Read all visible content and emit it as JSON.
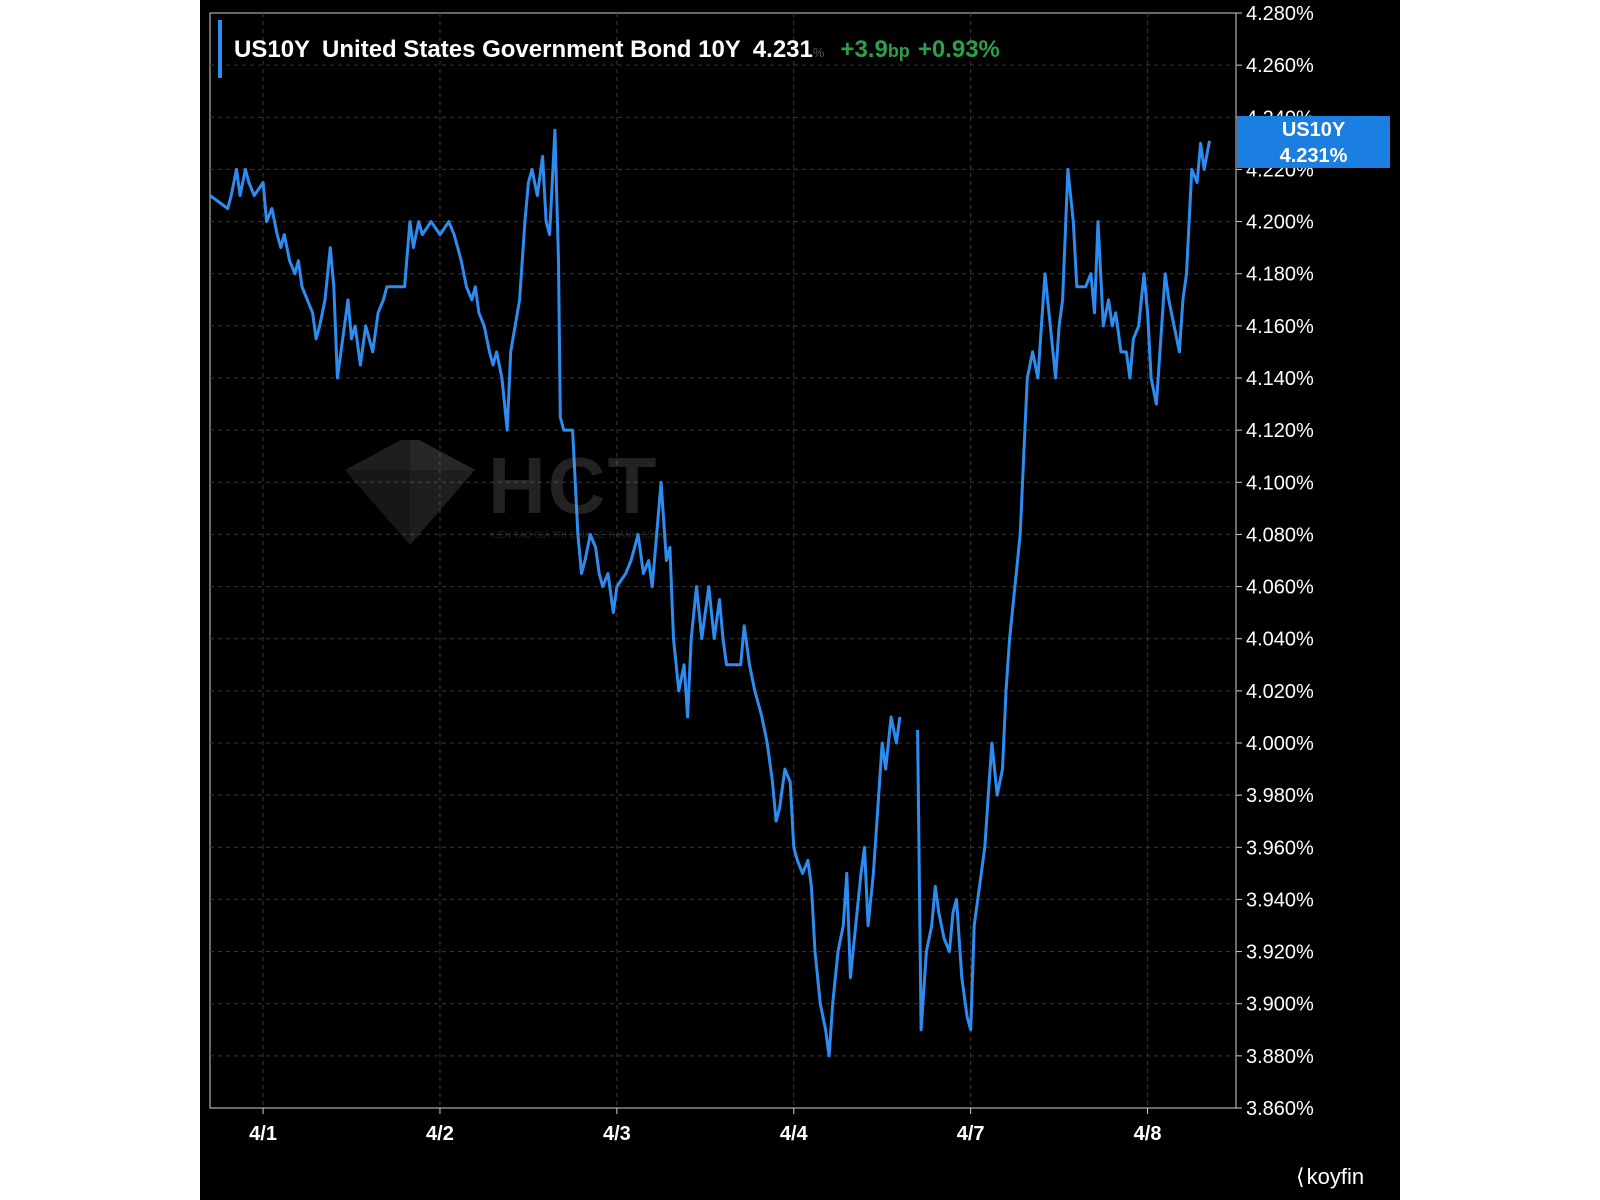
{
  "header": {
    "symbol": "US10Y",
    "name": "United States Government Bond 10Y",
    "value": "4.231",
    "value_unit": "%",
    "change": "+3.9",
    "change_unit": "bp",
    "change_pct": "+0.93%"
  },
  "last_badge": {
    "symbol": "US10Y",
    "value": "4.231%"
  },
  "watermark": {
    "text": "HCT",
    "tagline": "KIẾN TẠO GIÁ TRỊ CHIA SẺ THÀNH CÔNG"
  },
  "brand": {
    "name": "koyfin"
  },
  "colors": {
    "line": "#2d8cf0",
    "positive": "#2e9e4a",
    "badge": "#1a7fe0",
    "background": "#000000"
  },
  "chart_data": {
    "type": "line",
    "title": "",
    "xlabel": "",
    "ylabel": "",
    "x_ticks": [
      "4/1",
      "4/2",
      "4/3",
      "4/4",
      "4/7",
      "4/8"
    ],
    "y_ticks": [
      "3.860%",
      "3.880%",
      "3.900%",
      "3.920%",
      "3.940%",
      "3.960%",
      "3.980%",
      "4.000%",
      "4.020%",
      "4.040%",
      "4.060%",
      "4.080%",
      "4.100%",
      "4.120%",
      "4.140%",
      "4.160%",
      "4.180%",
      "4.200%",
      "4.220%",
      "4.240%",
      "4.260%",
      "4.280%"
    ],
    "ylim": [
      3.86,
      4.28
    ],
    "xlim": [
      -0.3,
      5.5
    ],
    "grid": true,
    "series": [
      {
        "name": "US10Y",
        "segments": [
          [
            [
              -0.3,
              4.21
            ],
            [
              -0.2,
              4.205
            ],
            [
              -0.18,
              4.21
            ],
            [
              -0.15,
              4.22
            ],
            [
              -0.13,
              4.21
            ],
            [
              -0.1,
              4.22
            ],
            [
              -0.08,
              4.215
            ],
            [
              -0.05,
              4.21
            ],
            [
              0.0,
              4.215
            ],
            [
              0.02,
              4.2
            ],
            [
              0.05,
              4.205
            ],
            [
              0.08,
              4.195
            ],
            [
              0.1,
              4.19
            ],
            [
              0.12,
              4.195
            ],
            [
              0.15,
              4.185
            ],
            [
              0.18,
              4.18
            ],
            [
              0.2,
              4.185
            ],
            [
              0.22,
              4.175
            ],
            [
              0.25,
              4.17
            ],
            [
              0.28,
              4.165
            ],
            [
              0.3,
              4.155
            ],
            [
              0.32,
              4.16
            ],
            [
              0.35,
              4.17
            ],
            [
              0.38,
              4.19
            ],
            [
              0.4,
              4.175
            ],
            [
              0.42,
              4.14
            ],
            [
              0.45,
              4.155
            ],
            [
              0.48,
              4.17
            ],
            [
              0.5,
              4.155
            ],
            [
              0.52,
              4.16
            ],
            [
              0.55,
              4.145
            ],
            [
              0.58,
              4.16
            ],
            [
              0.6,
              4.155
            ],
            [
              0.62,
              4.15
            ],
            [
              0.65,
              4.165
            ],
            [
              0.68,
              4.17
            ],
            [
              0.7,
              4.175
            ],
            [
              0.75,
              4.175
            ],
            [
              0.8,
              4.175
            ],
            [
              0.83,
              4.2
            ],
            [
              0.85,
              4.19
            ],
            [
              0.88,
              4.2
            ],
            [
              0.9,
              4.195
            ],
            [
              0.95,
              4.2
            ],
            [
              1.0,
              4.195
            ],
            [
              1.05,
              4.2
            ],
            [
              1.08,
              4.195
            ],
            [
              1.1,
              4.19
            ],
            [
              1.12,
              4.185
            ],
            [
              1.15,
              4.175
            ],
            [
              1.18,
              4.17
            ],
            [
              1.2,
              4.175
            ],
            [
              1.22,
              4.165
            ],
            [
              1.25,
              4.16
            ],
            [
              1.28,
              4.15
            ],
            [
              1.3,
              4.145
            ],
            [
              1.32,
              4.15
            ],
            [
              1.35,
              4.14
            ],
            [
              1.38,
              4.12
            ],
            [
              1.4,
              4.15
            ],
            [
              1.45,
              4.17
            ],
            [
              1.48,
              4.2
            ],
            [
              1.5,
              4.215
            ],
            [
              1.52,
              4.22
            ],
            [
              1.55,
              4.21
            ],
            [
              1.58,
              4.225
            ],
            [
              1.6,
              4.2
            ],
            [
              1.62,
              4.195
            ],
            [
              1.65,
              4.235
            ],
            [
              1.67,
              4.185
            ],
            [
              1.68,
              4.125
            ],
            [
              1.7,
              4.12
            ],
            [
              1.75,
              4.12
            ],
            [
              1.78,
              4.08
            ],
            [
              1.8,
              4.065
            ],
            [
              1.82,
              4.07
            ],
            [
              1.85,
              4.08
            ],
            [
              1.88,
              4.075
            ],
            [
              1.9,
              4.065
            ],
            [
              1.92,
              4.06
            ],
            [
              1.95,
              4.065
            ],
            [
              1.98,
              4.05
            ],
            [
              2.0,
              4.06
            ],
            [
              2.05,
              4.065
            ],
            [
              2.08,
              4.07
            ],
            [
              2.1,
              4.075
            ],
            [
              2.12,
              4.08
            ],
            [
              2.15,
              4.065
            ],
            [
              2.18,
              4.07
            ],
            [
              2.2,
              4.06
            ],
            [
              2.25,
              4.1
            ],
            [
              2.28,
              4.07
            ],
            [
              2.3,
              4.075
            ],
            [
              2.32,
              4.04
            ],
            [
              2.35,
              4.02
            ],
            [
              2.38,
              4.03
            ],
            [
              2.4,
              4.01
            ],
            [
              2.42,
              4.04
            ],
            [
              2.45,
              4.06
            ],
            [
              2.48,
              4.04
            ],
            [
              2.5,
              4.05
            ],
            [
              2.52,
              4.06
            ],
            [
              2.55,
              4.04
            ],
            [
              2.58,
              4.055
            ],
            [
              2.6,
              4.04
            ],
            [
              2.62,
              4.03
            ],
            [
              2.65,
              4.03
            ],
            [
              2.7,
              4.03
            ],
            [
              2.72,
              4.045
            ],
            [
              2.75,
              4.03
            ],
            [
              2.78,
              4.02
            ],
            [
              2.8,
              4.015
            ],
            [
              2.82,
              4.01
            ],
            [
              2.85,
              4.0
            ],
            [
              2.88,
              3.985
            ],
            [
              2.9,
              3.97
            ],
            [
              2.92,
              3.975
            ],
            [
              2.95,
              3.99
            ],
            [
              2.98,
              3.985
            ],
            [
              3.0,
              3.96
            ],
            [
              3.02,
              3.955
            ],
            [
              3.05,
              3.95
            ],
            [
              3.08,
              3.955
            ],
            [
              3.1,
              3.945
            ],
            [
              3.12,
              3.92
            ],
            [
              3.15,
              3.9
            ],
            [
              3.18,
              3.89
            ],
            [
              3.2,
              3.88
            ],
            [
              3.22,
              3.9
            ],
            [
              3.25,
              3.92
            ],
            [
              3.28,
              3.93
            ],
            [
              3.3,
              3.95
            ],
            [
              3.32,
              3.91
            ],
            [
              3.35,
              3.93
            ],
            [
              3.38,
              3.95
            ],
            [
              3.4,
              3.96
            ],
            [
              3.42,
              3.93
            ],
            [
              3.45,
              3.95
            ],
            [
              3.48,
              3.98
            ],
            [
              3.5,
              4.0
            ],
            [
              3.52,
              3.99
            ],
            [
              3.55,
              4.01
            ],
            [
              3.58,
              4.0
            ],
            [
              3.6,
              4.01
            ]
          ],
          [
            [
              3.7,
              4.005
            ],
            [
              3.72,
              3.89
            ],
            [
              3.75,
              3.92
            ],
            [
              3.78,
              3.93
            ],
            [
              3.8,
              3.945
            ],
            [
              3.82,
              3.935
            ],
            [
              3.85,
              3.925
            ],
            [
              3.88,
              3.92
            ],
            [
              3.9,
              3.935
            ],
            [
              3.92,
              3.94
            ],
            [
              3.95,
              3.91
            ],
            [
              3.98,
              3.895
            ],
            [
              4.0,
              3.89
            ],
            [
              4.02,
              3.93
            ],
            [
              4.05,
              3.945
            ],
            [
              4.08,
              3.96
            ],
            [
              4.1,
              3.98
            ],
            [
              4.12,
              4.0
            ],
            [
              4.15,
              3.98
            ],
            [
              4.18,
              3.99
            ],
            [
              4.2,
              4.02
            ],
            [
              4.22,
              4.04
            ],
            [
              4.25,
              4.06
            ],
            [
              4.28,
              4.08
            ],
            [
              4.3,
              4.11
            ],
            [
              4.32,
              4.14
            ],
            [
              4.35,
              4.15
            ],
            [
              4.38,
              4.14
            ],
            [
              4.4,
              4.16
            ],
            [
              4.42,
              4.18
            ],
            [
              4.45,
              4.16
            ],
            [
              4.48,
              4.14
            ],
            [
              4.5,
              4.16
            ],
            [
              4.52,
              4.17
            ],
            [
              4.55,
              4.22
            ],
            [
              4.58,
              4.2
            ],
            [
              4.6,
              4.175
            ],
            [
              4.65,
              4.175
            ],
            [
              4.68,
              4.18
            ],
            [
              4.7,
              4.165
            ],
            [
              4.72,
              4.2
            ],
            [
              4.75,
              4.16
            ],
            [
              4.78,
              4.17
            ],
            [
              4.8,
              4.16
            ],
            [
              4.82,
              4.165
            ],
            [
              4.85,
              4.15
            ],
            [
              4.88,
              4.15
            ],
            [
              4.9,
              4.14
            ],
            [
              4.92,
              4.155
            ],
            [
              4.95,
              4.16
            ],
            [
              4.98,
              4.18
            ],
            [
              5.0,
              4.165
            ],
            [
              5.02,
              4.14
            ],
            [
              5.05,
              4.13
            ],
            [
              5.08,
              4.16
            ],
            [
              5.1,
              4.18
            ],
            [
              5.12,
              4.17
            ],
            [
              5.15,
              4.16
            ],
            [
              5.18,
              4.15
            ],
            [
              5.2,
              4.17
            ],
            [
              5.22,
              4.18
            ],
            [
              5.25,
              4.22
            ],
            [
              5.28,
              4.215
            ],
            [
              5.3,
              4.23
            ],
            [
              5.32,
              4.22
            ],
            [
              5.35,
              4.231
            ]
          ]
        ]
      }
    ]
  }
}
